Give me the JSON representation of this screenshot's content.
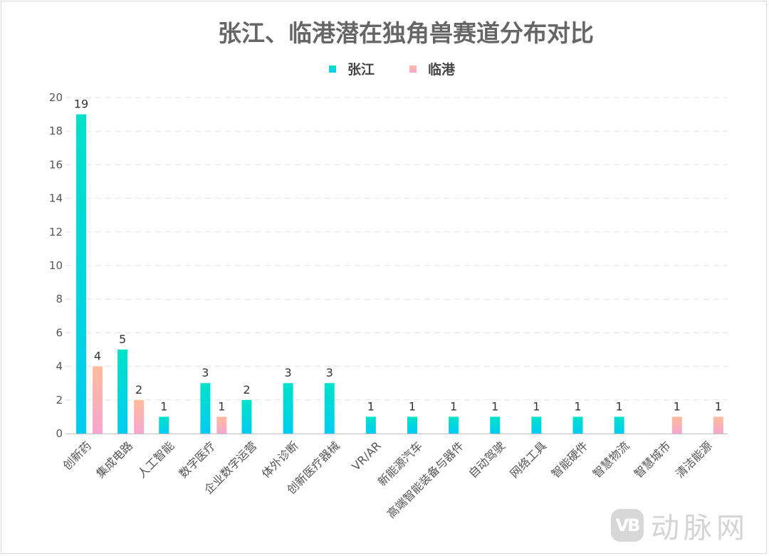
{
  "chart_data": {
    "type": "bar",
    "title": "张江、临港潜在独角兽赛道分布对比",
    "categories": [
      "创新药",
      "集成电路",
      "人工智能",
      "数字医疗",
      "企业数字运营",
      "体外诊断",
      "创新医疗器械",
      "VR/AR",
      "新能源汽车",
      "高端智能装备与器件",
      "自动驾驶",
      "网络工具",
      "智能硬件",
      "智慧物流",
      "智慧城市",
      "清洁能源"
    ],
    "series": [
      {
        "name": "张江",
        "values": [
          19,
          5,
          1,
          3,
          2,
          3,
          3,
          1,
          1,
          1,
          1,
          1,
          1,
          1,
          null,
          null
        ]
      },
      {
        "name": "临港",
        "values": [
          4,
          2,
          null,
          1,
          null,
          null,
          null,
          null,
          null,
          null,
          null,
          null,
          null,
          null,
          1,
          1
        ]
      }
    ],
    "ylim": [
      0,
      20
    ],
    "yticks": [
      0,
      2,
      4,
      6,
      8,
      10,
      12,
      14,
      16,
      18,
      20
    ],
    "grid": true,
    "legend_position": "top",
    "colors": {
      "张江_top": "#00e2c8",
      "张江_bottom": "#00ccf2",
      "临港_top": "#ffbc9c",
      "临港_bottom": "#f7a6d0",
      "title": "#666666",
      "axis_text": "#555555",
      "label": "#333333",
      "grid": "#e3e3e3"
    }
  },
  "watermark": {
    "logo_text": "VB",
    "brand": "动脉网"
  }
}
